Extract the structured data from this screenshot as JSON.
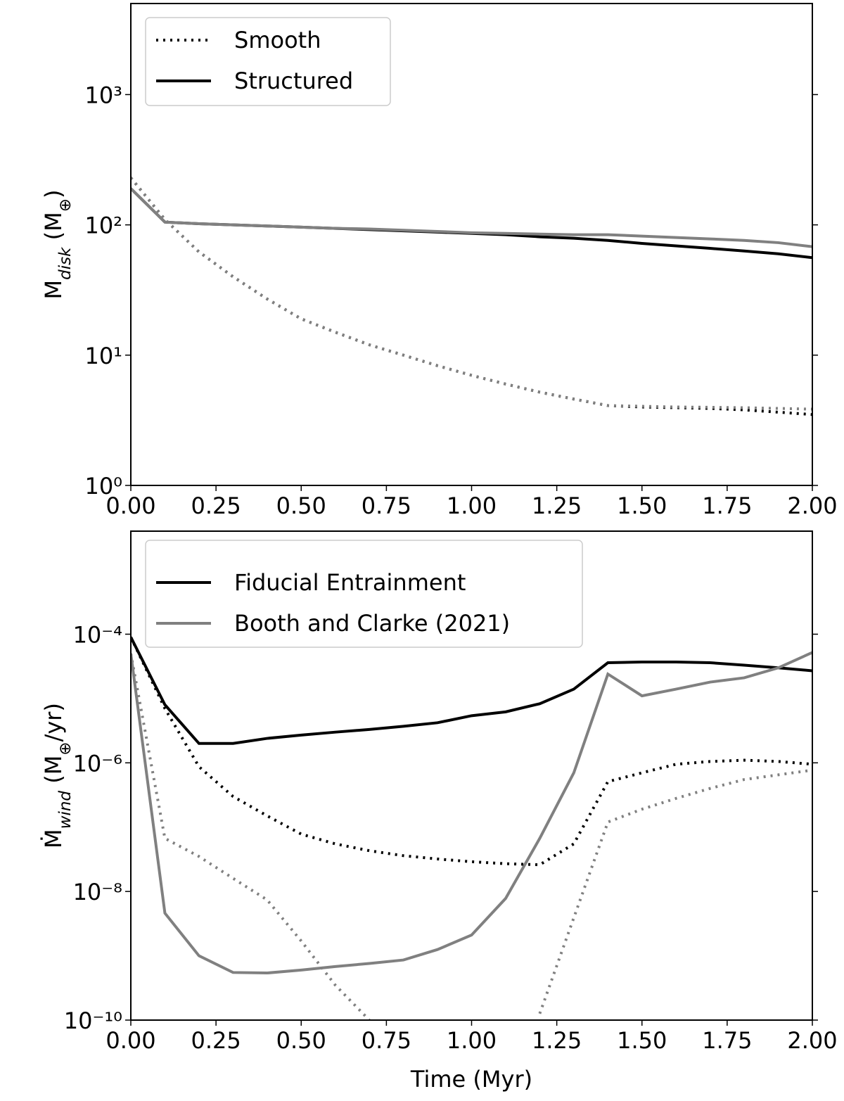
{
  "chart_data": [
    {
      "type": "line",
      "ylabel": [
        "M",
        "disk",
        " (M",
        "⊕",
        ")"
      ],
      "x": [
        0,
        0.1,
        0.2,
        0.3,
        0.4,
        0.5,
        0.6,
        0.7,
        0.8,
        0.9,
        1.0,
        1.1,
        1.2,
        1.3,
        1.4,
        1.5,
        1.6,
        1.7,
        1.8,
        1.9,
        2.0
      ],
      "series": [
        {
          "name": "Smooth",
          "color": "#000000",
          "dash": "dotted",
          "values": [
            230,
            110,
            62,
            40,
            27,
            19,
            15,
            12,
            10,
            8.3,
            7,
            6,
            5.2,
            4.6,
            4.1,
            4.0,
            3.95,
            3.9,
            3.8,
            3.65,
            3.5
          ]
        },
        {
          "name": "Structured",
          "color": "#000000",
          "dash": "solid",
          "values": [
            190,
            105,
            102,
            100,
            98,
            96,
            94,
            92,
            90,
            88,
            86,
            84,
            81,
            79,
            76,
            72,
            69,
            66,
            63,
            60,
            56
          ]
        },
        {
          "color": "#808080",
          "dash": "dotted",
          "values": [
            230,
            110,
            62,
            40,
            27,
            19,
            15,
            12,
            10,
            8.3,
            7,
            6,
            5.2,
            4.6,
            4.1,
            4.05,
            4.0,
            3.98,
            3.95,
            3.9,
            3.85
          ]
        },
        {
          "color": "#808080",
          "dash": "solid",
          "values": [
            190,
            105,
            102,
            100,
            98,
            96,
            94,
            93,
            91,
            89,
            87,
            86,
            85,
            84,
            84,
            82,
            80,
            78,
            76,
            73,
            68
          ]
        }
      ],
      "xlim": [
        0,
        2
      ],
      "xticks": [
        {
          "value": 0,
          "label": "0.00"
        },
        {
          "value": 0.25,
          "label": "0.25"
        },
        {
          "value": 0.5,
          "label": "0.50"
        },
        {
          "value": 0.75,
          "label": "0.75"
        },
        {
          "value": 1,
          "label": "1.00"
        },
        {
          "value": 1.25,
          "label": "1.25"
        },
        {
          "value": 1.5,
          "label": "1.50"
        },
        {
          "value": 1.75,
          "label": "1.75"
        },
        {
          "value": 2,
          "label": "2.00"
        }
      ],
      "ylim": [
        1,
        5000
      ],
      "yticks": [
        {
          "value": 1,
          "label": "10⁰"
        },
        {
          "value": 10,
          "label": "10¹"
        },
        {
          "value": 100,
          "label": "10²"
        },
        {
          "value": 1000,
          "label": "10³"
        }
      ],
      "ylog": true,
      "legend": "upper left"
    },
    {
      "type": "line",
      "xlabel": "Time (Myr)",
      "ylabel": [
        "Ṁ",
        "wind",
        " (M",
        "⊕",
        "/yr)"
      ],
      "x": [
        0,
        0.1,
        0.2,
        0.3,
        0.4,
        0.5,
        0.6,
        0.7,
        0.8,
        0.9,
        1.0,
        1.1,
        1.2,
        1.3,
        1.4,
        1.5,
        1.6,
        1.7,
        1.8,
        1.9,
        2.0
      ],
      "series": [
        {
          "name": "Fiducial Entrainment",
          "color": "#000000",
          "dash": "solid",
          "values": [
            9e-05,
            8e-06,
            2e-06,
            2e-06,
            2.4e-06,
            2.7e-06,
            3e-06,
            3.3e-06,
            3.7e-06,
            4.2e-06,
            5.4e-06,
            6.2e-06,
            8.3e-06,
            1.4e-05,
            3.6e-05,
            3.7e-05,
            3.7e-05,
            3.6e-05,
            3.3e-05,
            3e-05,
            2.7e-05
          ]
        },
        {
          "name": "Booth and Clarke (2021)",
          "color": "#808080",
          "dash": "solid",
          "values": [
            5e-05,
            4.6e-09,
            1e-09,
            5.5e-10,
            5.4e-10,
            6e-10,
            6.8e-10,
            7.6e-10,
            8.6e-10,
            1.25e-09,
            2.1e-09,
            7.8e-09,
            6.7e-08,
            7e-07,
            2.4e-05,
            1.1e-05,
            1.4e-05,
            1.8e-05,
            2.1e-05,
            3e-05,
            5.2e-05
          ]
        },
        {
          "color": "#000000",
          "dash": "dotted",
          "values": [
            9e-05,
            7e-06,
            8.7e-07,
            3e-07,
            1.5e-07,
            7.8e-08,
            5.5e-08,
            4.3e-08,
            3.6e-08,
            3.2e-08,
            2.9e-08,
            2.7e-08,
            2.6e-08,
            5.5e-08,
            5.1e-07,
            7e-07,
            9.5e-07,
            1.05e-06,
            1.1e-06,
            1.05e-06,
            9.5e-07
          ]
        },
        {
          "color": "#808080",
          "dash": "dotted",
          "values": [
            5e-05,
            6.7e-08,
            3.5e-08,
            1.6e-08,
            7.4e-09,
            1.7e-09,
            3.5e-10,
            1e-10,
            null,
            null,
            null,
            null,
            1.26e-10,
            3.9e-09,
            1.2e-07,
            1.9e-07,
            2.8e-07,
            4e-07,
            5.5e-07,
            6.5e-07,
            7.7e-07
          ]
        }
      ],
      "xlim": [
        0,
        2
      ],
      "xticks": [
        {
          "value": 0,
          "label": "0.00"
        },
        {
          "value": 0.25,
          "label": "0.25"
        },
        {
          "value": 0.5,
          "label": "0.50"
        },
        {
          "value": 0.75,
          "label": "0.75"
        },
        {
          "value": 1,
          "label": "1.00"
        },
        {
          "value": 1.25,
          "label": "1.25"
        },
        {
          "value": 1.5,
          "label": "1.50"
        },
        {
          "value": 1.75,
          "label": "1.75"
        },
        {
          "value": 2,
          "label": "2.00"
        }
      ],
      "ylim": [
        1e-10,
        0.004
      ],
      "yticks": [
        {
          "value": 1e-10,
          "label": "10⁻¹⁰"
        },
        {
          "value": 1e-08,
          "label": "10⁻⁸"
        },
        {
          "value": 1e-06,
          "label": "10⁻⁶"
        },
        {
          "value": 0.0001,
          "label": "10⁻⁴"
        }
      ],
      "ylog": true,
      "legend": "upper left"
    }
  ]
}
